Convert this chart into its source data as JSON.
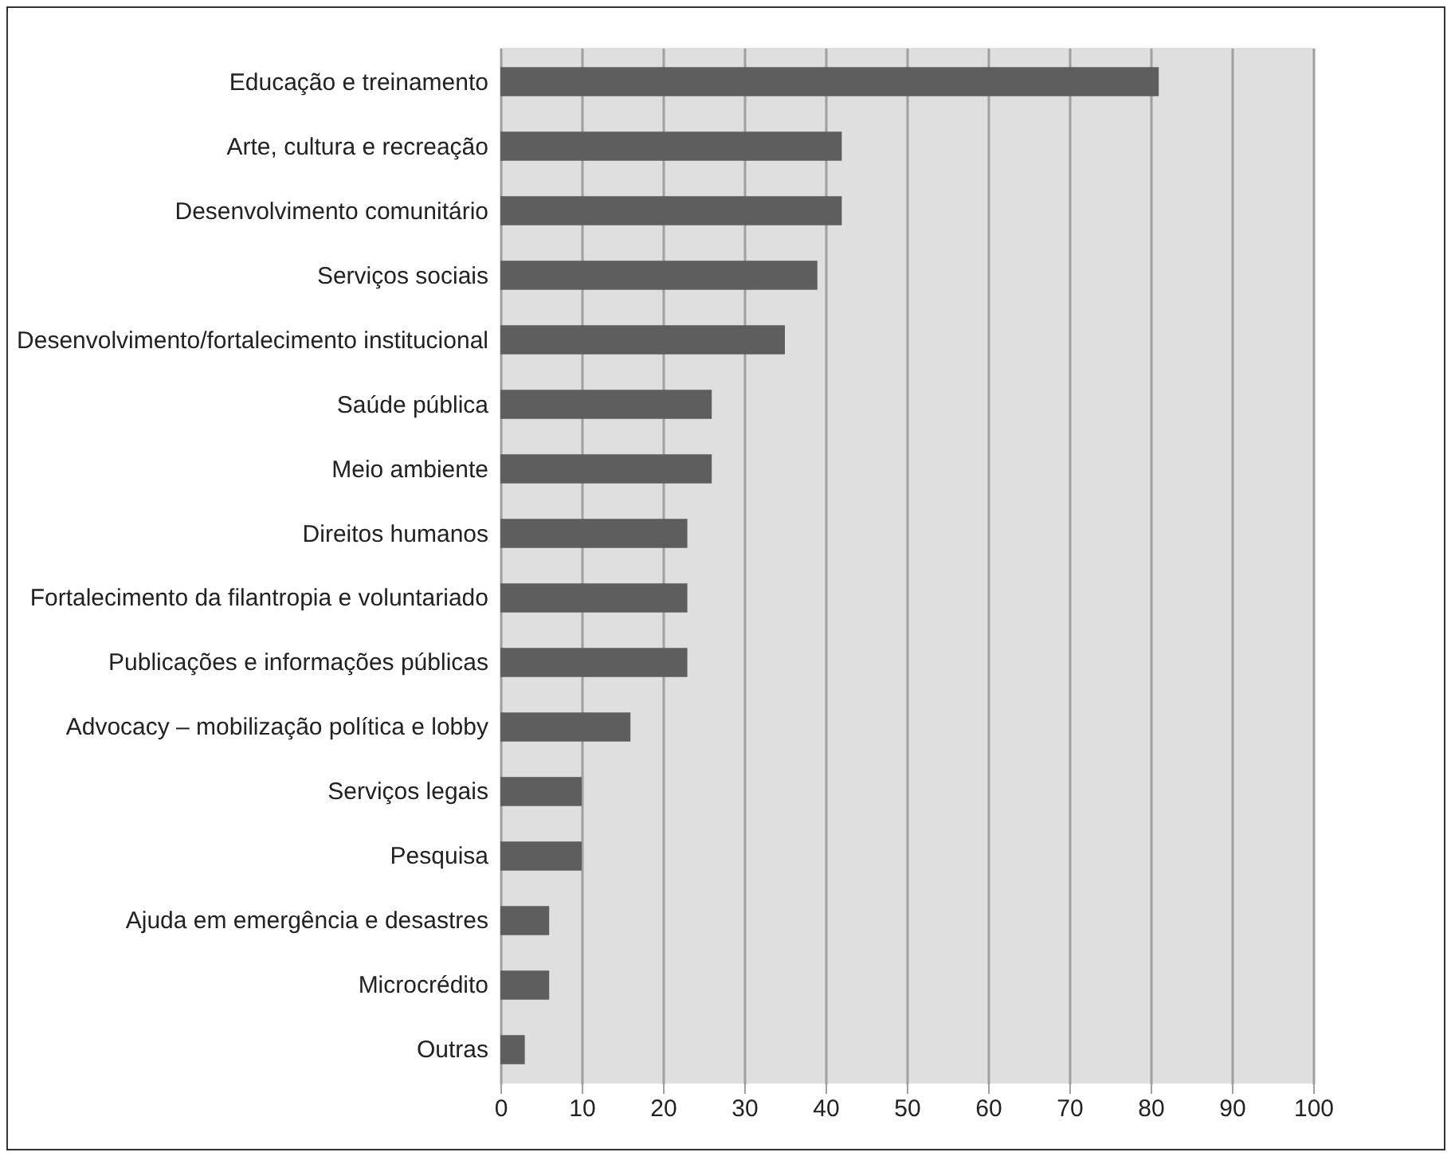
{
  "chart_data": {
    "type": "bar",
    "orientation": "horizontal",
    "categories": [
      "Educação e treinamento",
      "Arte, cultura e recreação",
      "Desenvolvimento comunitário",
      "Serviços sociais",
      "Desenvolvimento/fortalecimento institucional",
      "Saúde pública",
      "Meio ambiente",
      "Direitos humanos",
      "Fortalecimento da filantropia e voluntariado",
      "Publicações e informações públicas",
      "Advocacy – mobilização política e lobby",
      "Serviços legais",
      "Pesquisa",
      "Ajuda em emergência e desastres",
      "Microcrédito",
      "Outras"
    ],
    "values": [
      81,
      42,
      42,
      39,
      35,
      26,
      26,
      23,
      23,
      23,
      16,
      10,
      10,
      6,
      6,
      3
    ],
    "color": "#5e5e5e",
    "xlim": [
      0,
      100
    ],
    "xticks": [
      0,
      10,
      20,
      30,
      40,
      50,
      60,
      70,
      80,
      90,
      100
    ],
    "grid": "x"
  }
}
